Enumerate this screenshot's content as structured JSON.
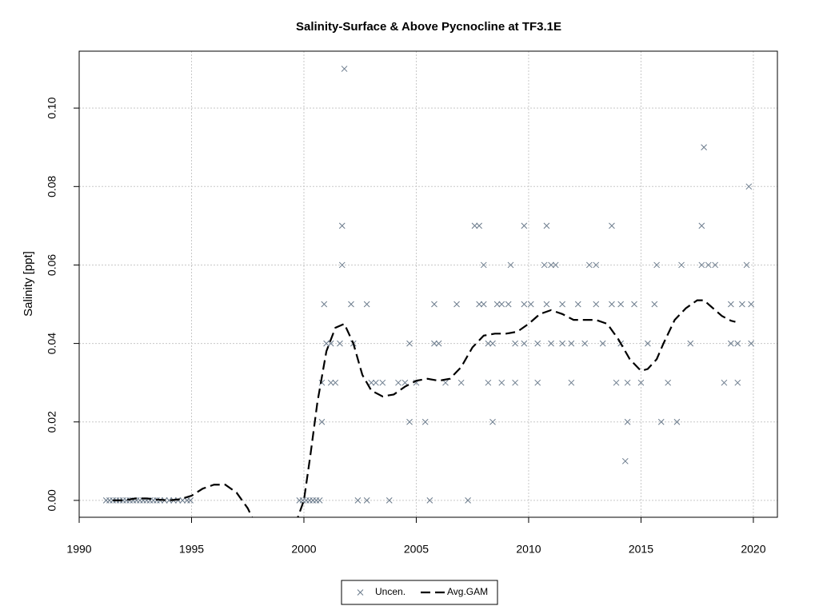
{
  "chart_data": {
    "type": "scatter",
    "title": "Salinity-Surface & Above Pycnocline at TF3.1E",
    "y_label": "Salinity [ppt]",
    "xlim": [
      1990,
      2021.07
    ],
    "ylim": [
      -0.0043,
      0.1145
    ],
    "xticks": [
      1990,
      1995,
      2000,
      2005,
      2010,
      2015,
      2020
    ],
    "yticks": [
      {
        "value": 0,
        "label": "0.00"
      },
      {
        "value": 0.02,
        "label": "0.02"
      },
      {
        "value": 0.04,
        "label": "0.04"
      },
      {
        "value": 0.06,
        "label": "0.06"
      },
      {
        "value": 0.08,
        "label": "0.08"
      },
      {
        "value": 0.1,
        "label": "0.10"
      }
    ],
    "grid": true,
    "legend": "bottom",
    "series": [
      {
        "name": "Uncen.",
        "type": "scatter",
        "color": "#6b7b8c",
        "x": [
          1991.2,
          1991.35,
          1991.5,
          1991.65,
          1991.8,
          1991.95,
          1992.1,
          1992.25,
          1992.4,
          1992.55,
          1992.7,
          1992.85,
          1993.0,
          1993.15,
          1993.3,
          1993.45,
          1993.6,
          1993.8,
          1994.0,
          1994.2,
          1994.4,
          1994.6,
          1994.8,
          1994.95,
          1999.8,
          1999.95,
          2000.1,
          2000.25,
          2000.4,
          2000.55,
          2000.7,
          2000.8,
          2000.8,
          2000.9,
          2001.0,
          2001.2,
          2001.2,
          2001.4,
          2001.6,
          2001.7,
          2001.7,
          2001.8,
          2002.1,
          2002.2,
          2002.4,
          2002.8,
          2002.8,
          2003.0,
          2003.2,
          2003.5,
          2003.8,
          2004.2,
          2004.5,
          2004.7,
          2004.7,
          2005.0,
          2005.4,
          2005.6,
          2005.8,
          2005.8,
          2006.0,
          2006.3,
          2006.8,
          2007.0,
          2007.3,
          2007.6,
          2007.8,
          2007.8,
          2008.0,
          2008.0,
          2008.2,
          2008.2,
          2008.4,
          2008.4,
          2008.6,
          2008.8,
          2008.8,
          2009.1,
          2009.2,
          2009.4,
          2009.4,
          2009.8,
          2009.8,
          2009.8,
          2010.1,
          2010.4,
          2010.4,
          2010.7,
          2010.8,
          2010.8,
          2011.0,
          2011.0,
          2011.2,
          2011.5,
          2011.5,
          2011.9,
          2011.9,
          2012.2,
          2012.5,
          2012.7,
          2013.0,
          2013.0,
          2013.3,
          2013.7,
          2013.7,
          2013.9,
          2014.1,
          2014.1,
          2014.3,
          2014.4,
          2014.4,
          2014.7,
          2015.0,
          2015.3,
          2015.6,
          2015.7,
          2015.9,
          2016.2,
          2016.6,
          2016.8,
          2017.2,
          2017.7,
          2017.7,
          2017.8,
          2018.0,
          2018.3,
          2018.7,
          2019.0,
          2019.0,
          2019.3,
          2019.3,
          2019.5,
          2019.7,
          2019.8,
          2019.9,
          2019.9
        ],
        "values": [
          0,
          0,
          0,
          0,
          0,
          0,
          0,
          0,
          0,
          0,
          0,
          0,
          0,
          0,
          0,
          0,
          0,
          0,
          0,
          0,
          0,
          0,
          0,
          0,
          0,
          0,
          0,
          0,
          0,
          0,
          0,
          0.03,
          0.02,
          0.05,
          0.04,
          0.03,
          0.04,
          0.03,
          0.04,
          0.07,
          0.06,
          0.11,
          0.05,
          0.04,
          0,
          0.05,
          0,
          0.03,
          0.03,
          0.03,
          0,
          0.03,
          0.03,
          0.04,
          0.02,
          0.03,
          0.02,
          0,
          0.05,
          0.04,
          0.04,
          0.03,
          0.05,
          0.03,
          0,
          0.07,
          0.07,
          0.05,
          0.06,
          0.05,
          0.04,
          0.03,
          0.02,
          0.04,
          0.05,
          0.03,
          0.05,
          0.05,
          0.06,
          0.03,
          0.04,
          0.07,
          0.05,
          0.04,
          0.05,
          0.03,
          0.04,
          0.06,
          0.07,
          0.05,
          0.06,
          0.04,
          0.06,
          0.05,
          0.04,
          0.03,
          0.04,
          0.05,
          0.04,
          0.06,
          0.06,
          0.05,
          0.04,
          0.07,
          0.05,
          0.03,
          0.05,
          0.04,
          0.01,
          0.02,
          0.03,
          0.05,
          0.03,
          0.04,
          0.05,
          0.06,
          0.02,
          0.03,
          0.02,
          0.06,
          0.04,
          0.07,
          0.06,
          0.09,
          0.06,
          0.06,
          0.03,
          0.05,
          0.04,
          0.04,
          0.03,
          0.05,
          0.06,
          0.08,
          0.05,
          0.04
        ]
      },
      {
        "name": "Avg.GAM",
        "type": "line",
        "color": "#000000",
        "x": [
          1991.5,
          1992,
          1992.5,
          1993,
          1993.5,
          1994,
          1994.5,
          1995,
          1995.5,
          1996,
          1996.5,
          1997,
          1997.5,
          1998,
          1999.5,
          2000,
          2000.3,
          2000.6,
          2001,
          2001.4,
          2001.8,
          2002.2,
          2002.6,
          2003,
          2003.5,
          2004,
          2004.5,
          2005,
          2005.5,
          2006,
          2006.5,
          2007,
          2007.5,
          2008,
          2008.5,
          2009,
          2009.5,
          2010,
          2010.5,
          2011,
          2011.5,
          2012,
          2012.5,
          2013,
          2013.5,
          2014,
          2014.5,
          2015,
          2015.3,
          2015.7,
          2016,
          2016.5,
          2017,
          2017.5,
          2017.8,
          2018.2,
          2018.6,
          2019,
          2019.2
        ],
        "values": [
          0,
          0,
          0.0005,
          0.0005,
          0.0002,
          0,
          0.0003,
          0.0012,
          0.003,
          0.004,
          0.004,
          0.002,
          -0.002,
          -0.008,
          -0.008,
          0,
          0.012,
          0.025,
          0.038,
          0.044,
          0.045,
          0.04,
          0.032,
          0.028,
          0.0265,
          0.027,
          0.029,
          0.0305,
          0.031,
          0.0305,
          0.031,
          0.034,
          0.039,
          0.042,
          0.0425,
          0.0425,
          0.043,
          0.045,
          0.0475,
          0.0485,
          0.0475,
          0.046,
          0.046,
          0.046,
          0.045,
          0.041,
          0.036,
          0.033,
          0.0335,
          0.036,
          0.04,
          0.046,
          0.049,
          0.051,
          0.051,
          0.049,
          0.047,
          0.0458,
          0.0455
        ]
      }
    ]
  }
}
